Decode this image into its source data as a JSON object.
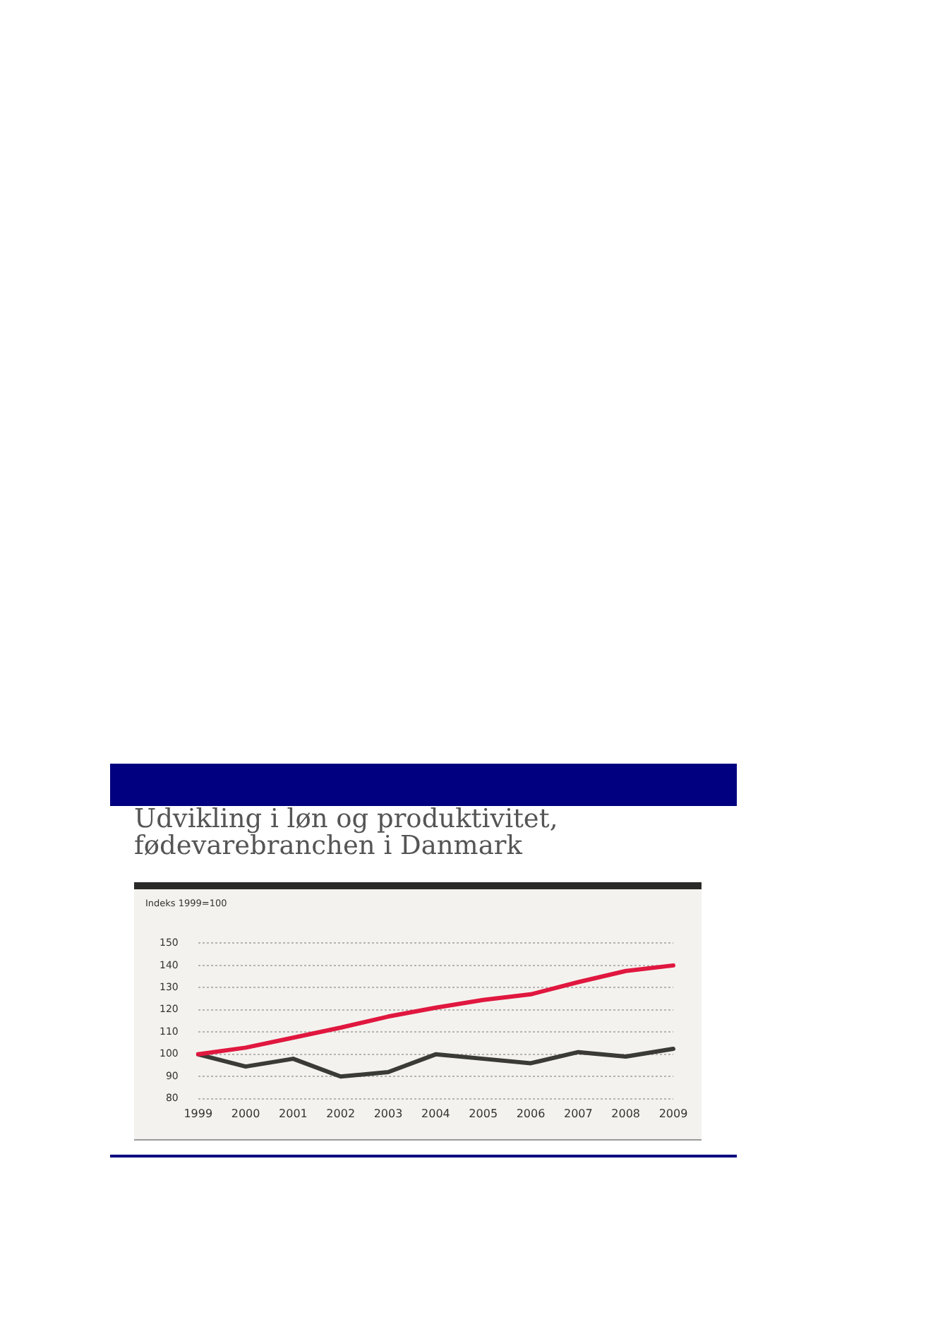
{
  "chart_data": {
    "type": "line",
    "title": "Udvikling i løn og produktivitet,\nfødevarebranchen i Danmark",
    "ylabel": "Indeks 1999=100",
    "categories": [
      "1999",
      "2000",
      "2001",
      "2002",
      "2003",
      "2004",
      "2005",
      "2006",
      "2007",
      "2008",
      "2009"
    ],
    "series": [
      {
        "color": "#e0173f",
        "values": [
          100,
          103,
          107.5,
          112,
          117,
          121,
          124.5,
          127,
          132.5,
          137.5,
          140
        ]
      },
      {
        "color": "#3a3a36",
        "values": [
          100,
          94.5,
          98,
          90,
          92,
          100,
          98,
          96,
          101,
          99,
          102.5
        ]
      }
    ],
    "ylim": [
      80,
      150
    ],
    "yticks": [
      80,
      90,
      100,
      110,
      120,
      130,
      140,
      150
    ],
    "grid": "y",
    "legend": false,
    "marker": "none",
    "line_style": "solid"
  }
}
